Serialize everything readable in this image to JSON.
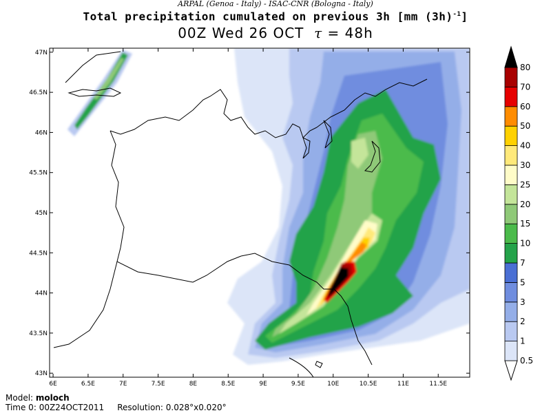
{
  "header": {
    "source_line": "ARPAL (Genoa - Italy)  -  ISAC-CNR (Bologna - Italy)",
    "title_main": "Total precipitation cumulated on previous 3h [mm (3h)",
    "title_sup": "-1",
    "title_close": "]",
    "time_left": "00Z Wed 26 OCT",
    "tau_symbol": "τ",
    "tau_value": "= 48h"
  },
  "map": {
    "x_ticks": [
      "6E",
      "6.5E",
      "7E",
      "7.5E",
      "8E",
      "8.5E",
      "9E",
      "9.5E",
      "10E",
      "10.5E",
      "11E",
      "11.5E"
    ],
    "y_ticks": [
      "47N",
      "46.5N",
      "46N",
      "45.5N",
      "45N",
      "44.5N",
      "44N",
      "43.5N",
      "43N"
    ],
    "lon_range": [
      5.95,
      11.95
    ],
    "lat_range": [
      42.95,
      47.05
    ]
  },
  "colorbar": {
    "levels": [
      "0.5",
      "1",
      "2",
      "3",
      "5",
      "7",
      "10",
      "15",
      "20",
      "25",
      "30",
      "40",
      "50",
      "60",
      "70",
      "80"
    ],
    "colors": [
      "#ffffff",
      "#dce5f8",
      "#b9c9f1",
      "#94aee8",
      "#6f8ddf",
      "#4a6fd4",
      "#24a34a",
      "#4bbb4b",
      "#8fc978",
      "#c4e59a",
      "#fffcc8",
      "#ffe97a",
      "#ffd100",
      "#ff8c00",
      "#e60000",
      "#a80000",
      "#5a0000",
      "#000000"
    ]
  },
  "footer": {
    "model_label": "Model: ",
    "model_value": "moloch",
    "time0_label": "Time 0: ",
    "time0_value": "00Z24OCT2011",
    "resolution_label": "Resolution: ",
    "resolution_value": "0.028°x0.020°"
  }
}
